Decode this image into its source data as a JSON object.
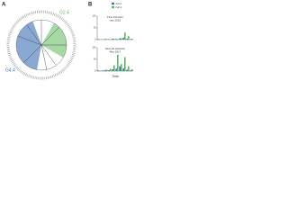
{
  "panel_labels": [
    "A",
    "B"
  ],
  "tree": {
    "clades": [
      {
        "label": "G2.4",
        "color": "#5cb85c"
      },
      {
        "label": "G4.4",
        "color": "#3a6fb5"
      }
    ]
  },
  "chart_data": [
    {
      "type": "bar",
      "title": "First infection",
      "subtitle": "Jan 2015",
      "categories": [
        null,
        null,
        null,
        null,
        null,
        null,
        null,
        null,
        null,
        null
      ],
      "series": [
        {
          "name": "G4.4",
          "color": "#3a6fb5",
          "values": [
            2,
            1,
            3,
            2,
            4,
            3,
            5,
            8,
            4,
            2
          ]
        },
        {
          "name": "G2.4",
          "color": "#5cb85c",
          "values": [
            1,
            0,
            2,
            1,
            3,
            2,
            6,
            30,
            15,
            4
          ]
        }
      ],
      "ylim": [
        0,
        100
      ],
      "yticks": [
        0,
        50,
        100
      ]
    },
    {
      "type": "bar",
      "title": "Second infection",
      "subtitle": "Mar 2017",
      "x_label": "Time",
      "categories": [
        null,
        null,
        null,
        null,
        null,
        null,
        null,
        null,
        null,
        null
      ],
      "series": [
        {
          "color": "#3a6fb5",
          "values": [
            3,
            2,
            5,
            4,
            8,
            10,
            20,
            12,
            6,
            3
          ]
        },
        {
          "color": "#5cb85c",
          "values": [
            2,
            4,
            6,
            10,
            25,
            70,
            30,
            60,
            20,
            8
          ]
        }
      ],
      "ylim": [
        0,
        100
      ],
      "yticks": [
        0,
        50,
        100
      ]
    }
  ]
}
